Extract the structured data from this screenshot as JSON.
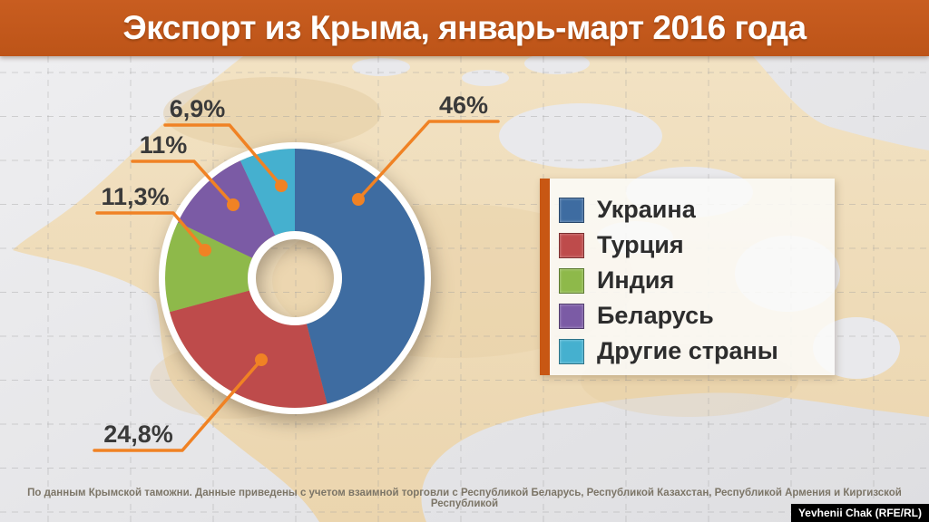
{
  "header": {
    "title": "Экспорт из Крыма, январь-март 2016 года"
  },
  "chart_data": {
    "type": "pie",
    "subtype": "donut",
    "title": "Экспорт из Крыма, январь-март 2016 года",
    "categories": [
      "Украина",
      "Турция",
      "Индия",
      "Беларусь",
      "Другие страны"
    ],
    "values": [
      46,
      24.8,
      11.3,
      11,
      6.9
    ],
    "value_labels": [
      "46%",
      "24,8%",
      "11,3%",
      "11%",
      "6,9%"
    ],
    "colors": [
      "#3e6ca1",
      "#be4b4b",
      "#8eb94a",
      "#7b5ba5",
      "#45b0cf"
    ],
    "units": "percent",
    "start_angle": "top, clockwise",
    "legend_position": "right"
  },
  "style_colors": {
    "header_bg": "#c25819",
    "callout_orange": "#f08224",
    "legend_accent_bar": "#c85713",
    "label_text": "#3a3a3a",
    "land": "#efdbba",
    "sea": "#e7e7ea"
  },
  "footnote": {
    "text": "По данным Крымской таможни. Данные приведены с учетом взаимной торговли с Республикой Беларусь, Республикой Казахстан, Республикой Армения и Киргизской Республикой"
  },
  "watermark": {
    "text": "Yevhenii Chak (RFE/RL)"
  }
}
